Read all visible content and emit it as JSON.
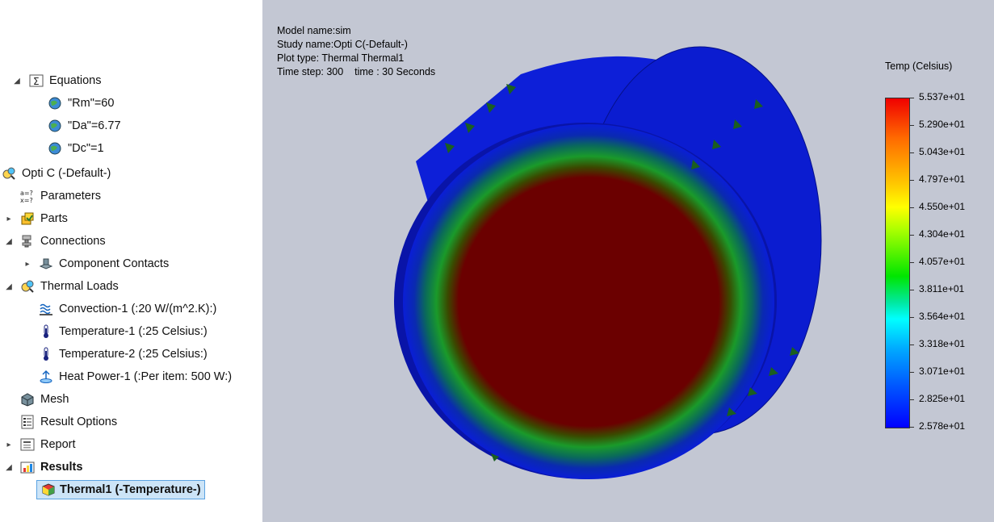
{
  "tree": {
    "equations": {
      "label": "Equations",
      "items": [
        "\"Rm\"=60",
        "\"Da\"=6.77",
        "\"Dc\"=1"
      ]
    },
    "study": "Opti C (-Default-)",
    "parameters": "Parameters",
    "parts": "Parts",
    "connections": "Connections",
    "component_contacts": "Component Contacts",
    "thermal_loads": "Thermal Loads",
    "convection": "Convection-1 (:20 W/(m^2.K):)",
    "temperature1": "Temperature-1 (:25 Celsius:)",
    "temperature2": "Temperature-2 (:25 Celsius:)",
    "heat_power": "Heat Power-1 (:Per item: 500 W:)",
    "mesh": "Mesh",
    "result_options": "Result Options",
    "report": "Report",
    "results": "Results",
    "thermal1": "Thermal1 (-Temperature-)"
  },
  "viewport": {
    "info": {
      "model": "Model name:sim",
      "study": "Study name:Opti C(-Default-)",
      "plot": "Plot type: Thermal Thermal1",
      "time": "Time step: 300    time : 30 Seconds"
    },
    "legend": {
      "title": "Temp (Celsius)",
      "ticks": [
        "5.537e+01",
        "5.290e+01",
        "5.043e+01",
        "4.797e+01",
        "4.550e+01",
        "4.304e+01",
        "4.057e+01",
        "3.811e+01",
        "3.564e+01",
        "3.318e+01",
        "3.071e+01",
        "2.825e+01",
        "2.578e+01"
      ]
    },
    "colors": {
      "background": "#c3c7d3",
      "hot": "#6b0000",
      "ring": "#1a9a2a",
      "cold": "#0a1ed6",
      "arrow": "#1b5e20"
    }
  }
}
